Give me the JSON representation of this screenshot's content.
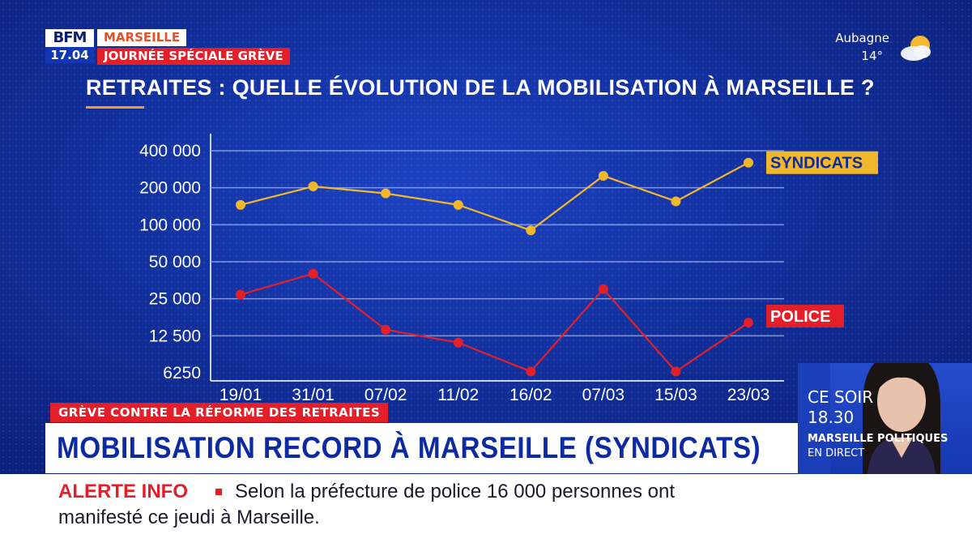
{
  "channel": {
    "logo_text": "BFM",
    "time": "17.04",
    "city_tag": "MARSEILLE",
    "special_tag": "JOURNÉE SPÉCIALE GRÈVE"
  },
  "weather": {
    "place": "Aubagne",
    "temperature": "14°",
    "icon": "partly-cloudy-icon"
  },
  "chart_data": {
    "type": "line",
    "title": "RETRAITES : QUELLE ÉVOLUTION DE LA MOBILISATION À MARSEILLE ?",
    "xlabel": "",
    "ylabel": "",
    "y_scale": "log2",
    "y_ticks": [
      6250,
      12500,
      25000,
      50000,
      100000,
      200000,
      400000
    ],
    "y_tick_labels": [
      "6250",
      "12 500",
      "25 000",
      "50 000",
      "100 000",
      "200 000",
      "400 000"
    ],
    "categories": [
      "19/01",
      "31/01",
      "07/02",
      "11/02",
      "16/02",
      "07/03",
      "15/03",
      "23/03"
    ],
    "grid": true,
    "series": [
      {
        "name": "SYNDICATS",
        "color": "#f2b82b",
        "values": [
          145000,
          205000,
          180000,
          145000,
          90000,
          250000,
          155000,
          320000
        ]
      },
      {
        "name": "POLICE",
        "color": "#e3202a",
        "values": [
          27000,
          40000,
          14000,
          11000,
          6400,
          30000,
          6400,
          16000
        ]
      }
    ]
  },
  "lower_third": {
    "topic": "GRÈVE CONTRE LA RÉFORME DES RETRAITES",
    "headline": "MOBILISATION RECORD À MARSEILLE (SYNDICATS)"
  },
  "promo": {
    "line1": "CE SOIR",
    "line2": "18.30",
    "line3": "MARSEILLE POLITIQUES",
    "line4": "EN DIRECT"
  },
  "ticker": {
    "alert_label": "ALERTE INFO",
    "line1": "Selon la préfecture de police 16 000 personnes ont",
    "line2": "manifesté ce jeudi à Marseille."
  }
}
